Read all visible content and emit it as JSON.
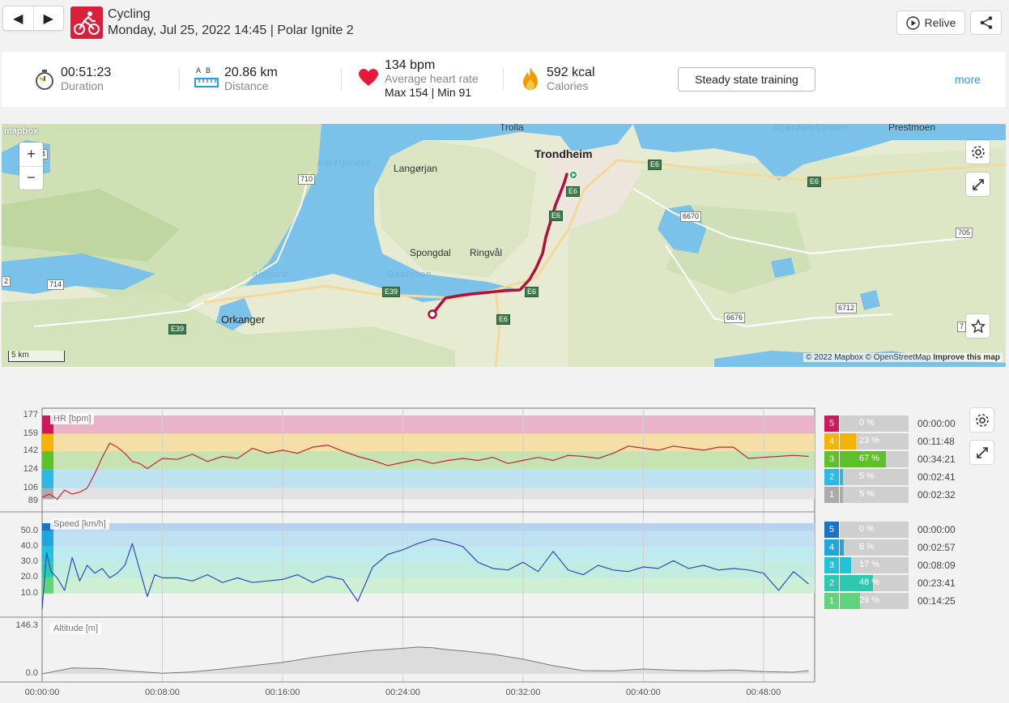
{
  "header": {
    "prev_glyph": "◀",
    "next_glyph": "▶",
    "sport": "Cycling",
    "subtitle": "Monday, Jul 25, 2022 14:45 | Polar Ignite 2",
    "relive_label": "Relive"
  },
  "summary": {
    "duration_value": "00:51:23",
    "duration_label": "Duration",
    "distance_value": "20.86 km",
    "distance_label": "Distance",
    "distance_ab": "A  B",
    "hr_value": "134 bpm",
    "hr_label": "Average heart rate",
    "hr_maxmin": "Max 154  |  Min 91",
    "calories_value": "592 kcal",
    "calories_label": "Calories",
    "training_button": "Steady state training",
    "more_label": "more"
  },
  "map": {
    "places": {
      "trolla": "Trolla",
      "trondheim": "Trondheim",
      "prestmoen": "Prestmoen",
      "langorjan": "Langørjan",
      "spongdal": "Spongdal",
      "ringval": "Ringvål",
      "gaulosen": "Gaulosen",
      "orkanger": "Orkanger",
      "korsfjorden": "Korsfjorden",
      "stjordalsfjorden": "Stjørdalsfjorden",
      "alsfjord": "alsfjord"
    },
    "roads": {
      "r710": "710",
      "r714": "714",
      "r6670": "6670",
      "r705": "705",
      "r6676": "6676",
      "r6712": "6712",
      "e39a": "E39",
      "e39b": "E39",
      "e6a": "E6",
      "e6b": "E6",
      "e6c": "E6",
      "e6d": "E6",
      "e6e": "E6",
      "e6f": "E6",
      "r4": "4",
      "r2": "2",
      "r7": "7"
    },
    "zoom_in": "+",
    "zoom_out": "−",
    "logo": "mapbox",
    "scale": "5 km",
    "attribution_mapbox": "© 2022 Mapbox",
    "attribution_osm": "© OpenStreetMap",
    "attribution_improve": "Improve this map"
  },
  "charts": {
    "hr": {
      "label": "HR [bpm]",
      "yticks": [
        "177",
        "159",
        "142",
        "124",
        "106",
        "89"
      ],
      "zones": [
        {
          "num": "5",
          "pct": "0 %",
          "fraction": 0,
          "time": "00:00:00",
          "color": "#d0175a",
          "band": "#eab4c8"
        },
        {
          "num": "4",
          "pct": "23 %",
          "fraction": 0.23,
          "time": "00:11:48",
          "color": "#f4b400",
          "band": "#f5dfa6"
        },
        {
          "num": "3",
          "pct": "67 %",
          "fraction": 0.67,
          "time": "00:34:21",
          "color": "#5ec02a",
          "band": "#c6e3b2"
        },
        {
          "num": "2",
          "pct": "5 %",
          "fraction": 0.05,
          "time": "00:02:41",
          "color": "#2eb8e6",
          "band": "#bde3f2"
        },
        {
          "num": "1",
          "pct": "5 %",
          "fraction": 0.05,
          "time": "00:02:32",
          "color": "#aaaaaa",
          "band": "#e2e2e2"
        }
      ]
    },
    "speed": {
      "label": "Speed [km/h]",
      "yticks": [
        "50.0",
        "40.0",
        "30.0",
        "20.0",
        "10.0"
      ],
      "zones": [
        {
          "num": "5",
          "pct": "0 %",
          "fraction": 0,
          "time": "00:00:00",
          "color": "#1a72c9",
          "band": "#b7d2ee"
        },
        {
          "num": "4",
          "pct": "6 %",
          "fraction": 0.06,
          "time": "00:02:57",
          "color": "#1ea6de",
          "band": "#bfe1f2"
        },
        {
          "num": "3",
          "pct": "17 %",
          "fraction": 0.17,
          "time": "00:08:09",
          "color": "#22c2d9",
          "band": "#c0ebee"
        },
        {
          "num": "2",
          "pct": "48 %",
          "fraction": 0.48,
          "time": "00:23:41",
          "color": "#2cc9b0",
          "band": "#c2ecdf"
        },
        {
          "num": "1",
          "pct": "29 %",
          "fraction": 0.29,
          "time": "00:14:25",
          "color": "#5fd47a",
          "band": "#cdefd3"
        }
      ]
    },
    "altitude": {
      "label": "Altitude [m]",
      "yticks": [
        "146.3",
        "0.0"
      ]
    },
    "xticks": [
      "00:00:00",
      "00:08:00",
      "00:16:00",
      "00:24:00",
      "00:32:00",
      "00:40:00",
      "00:48:00"
    ]
  },
  "chart_data": [
    {
      "type": "line",
      "title": "HR [bpm]",
      "xlabel": "",
      "ylabel": "",
      "x_unit": "minutes",
      "ylim": [
        89,
        177
      ],
      "x": [
        0,
        0.5,
        1,
        1.5,
        2,
        2.5,
        3,
        3.5,
        4,
        4.5,
        5,
        5.5,
        6,
        6.5,
        7,
        7.5,
        8,
        9,
        10,
        11,
        12,
        13,
        14,
        15,
        16,
        17,
        18,
        19,
        20,
        21,
        22,
        23,
        24,
        25,
        26,
        27,
        28,
        29,
        30,
        31,
        32,
        33,
        34,
        35,
        36,
        37,
        38,
        39,
        40,
        41,
        42,
        43,
        44,
        45,
        46,
        47,
        48,
        49,
        50,
        51
      ],
      "series": [
        {
          "name": "",
          "values": [
            97,
            100,
            95,
            104,
            100,
            102,
            106,
            120,
            136,
            150,
            146,
            140,
            132,
            130,
            125,
            130,
            135,
            134,
            139,
            132,
            137,
            135,
            145,
            140,
            143,
            140,
            146,
            148,
            142,
            137,
            133,
            128,
            131,
            134,
            130,
            133,
            135,
            133,
            136,
            130,
            133,
            136,
            133,
            138,
            137,
            135,
            140,
            147,
            145,
            143,
            147,
            145,
            143,
            146,
            146,
            135,
            136,
            137,
            138,
            137
          ]
        }
      ]
    },
    {
      "type": "line",
      "title": "Speed [km/h]",
      "xlabel": "",
      "ylabel": "",
      "x_unit": "minutes",
      "ylim": [
        0,
        55
      ],
      "x": [
        0,
        0.3,
        0.6,
        1,
        1.5,
        2,
        2.5,
        3,
        3.5,
        4,
        4.5,
        5,
        5.5,
        6,
        6.5,
        7,
        7.5,
        8,
        9,
        10,
        11,
        12,
        13,
        14,
        15,
        16,
        17,
        18,
        19,
        20,
        21,
        22,
        23,
        24,
        25,
        26,
        27,
        28,
        29,
        30,
        31,
        32,
        33,
        34,
        35,
        36,
        37,
        38,
        39,
        40,
        41,
        42,
        43,
        44,
        45,
        46,
        47,
        48,
        49,
        50,
        51
      ],
      "series": [
        {
          "name": "",
          "values": [
            0,
            36,
            24,
            20,
            12,
            33,
            18,
            28,
            23,
            26,
            20,
            23,
            28,
            42,
            25,
            8,
            22,
            20,
            20,
            18,
            22,
            17,
            20,
            17,
            18,
            19,
            22,
            17,
            21,
            19,
            5,
            27,
            35,
            38,
            42,
            45,
            43,
            40,
            30,
            26,
            25,
            30,
            24,
            37,
            25,
            22,
            28,
            25,
            24,
            27,
            26,
            31,
            26,
            28,
            25,
            26,
            25,
            23,
            12,
            24,
            16
          ]
        }
      ]
    },
    {
      "type": "area",
      "title": "Altitude [m]",
      "xlabel": "",
      "ylabel": "",
      "x_unit": "minutes",
      "ylim": [
        0,
        146.3
      ],
      "x": [
        0,
        2,
        3,
        4,
        5,
        6,
        7,
        8,
        10,
        12,
        14,
        16,
        18,
        20,
        22,
        24,
        25,
        26,
        27,
        28,
        30,
        32,
        34,
        36,
        38,
        40,
        42,
        44,
        46,
        48,
        50,
        51
      ],
      "series": [
        {
          "name": "",
          "values": [
            0,
            18,
            17,
            16,
            12,
            8,
            5,
            2,
            6,
            15,
            25,
            35,
            50,
            62,
            72,
            78,
            82,
            80,
            74,
            70,
            60,
            45,
            25,
            10,
            9,
            15,
            11,
            9,
            12,
            7,
            5,
            10
          ]
        }
      ]
    }
  ]
}
